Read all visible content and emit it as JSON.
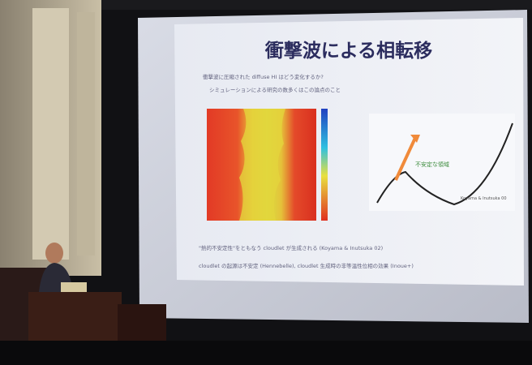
{
  "slide": {
    "title": "衝撃波による相転移",
    "bullets": [
      "衝撃波に圧縮された diffuse HI はどう変化するか?",
      "シミュレーションによる研究の数多くはこの論点のこと",
      "\"熱的不安定性\"をともなう cloudlet が生成される (Koyama & Inutsuka 02)",
      "cloudlet の起源は不安定 (Hennebelle), cloudlet 生成時の非等温性位相の効果 (Inoue+)"
    ],
    "plot_label": "不安定な領域",
    "plot_caption": "Koyama & Inutsuka 00"
  }
}
